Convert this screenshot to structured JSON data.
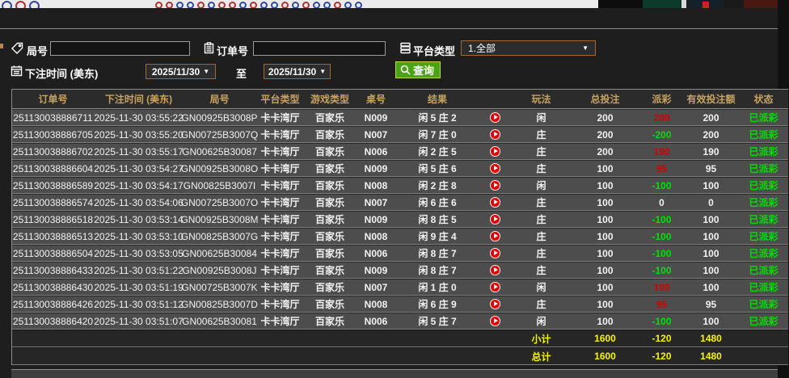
{
  "filters": {
    "round_label": "局号",
    "round_value": "",
    "order_label": "订单号",
    "order_value": "",
    "platform_label": "平台类型",
    "platform_selected": "1.全部",
    "bettime_label": "下注时间 (美东)",
    "date_from": "2025/11/30",
    "to_label": "至",
    "date_to": "2025/11/30",
    "query_label": "查询",
    "dropdown_arrow": "▼"
  },
  "table": {
    "headers": [
      "订单号",
      "下注时间 (美东)",
      "局号",
      "平台类型",
      "游戏类型",
      "桌号",
      "结果",
      "",
      "玩法",
      "总投注",
      "派彩",
      "有效投注额",
      "状态"
    ],
    "rows": [
      {
        "order": "251130038886711",
        "time": "2025-11-30 03:55:22",
        "round": "GN00925B3008P",
        "platform": "卡卡湾厅",
        "game": "百家乐",
        "table_no": "N009",
        "result": "闲 5 庄 2",
        "play": "闲",
        "total": "200",
        "payout": "200",
        "payout_cls": "win",
        "valid": "200",
        "status": "已派彩"
      },
      {
        "order": "251130038886705",
        "time": "2025-11-30 03:55:20",
        "round": "GN00725B3007Q",
        "platform": "卡卡湾厅",
        "game": "百家乐",
        "table_no": "N007",
        "result": "闲 7 庄 0",
        "play": "庄",
        "total": "200",
        "payout": "-200",
        "payout_cls": "loss",
        "valid": "200",
        "status": "已派彩"
      },
      {
        "order": "251130038886702",
        "time": "2025-11-30 03:55:17",
        "round": "GN00625B30087",
        "platform": "卡卡湾厅",
        "game": "百家乐",
        "table_no": "N006",
        "result": "闲 2 庄 5",
        "play": "庄",
        "total": "200",
        "payout": "190",
        "payout_cls": "win",
        "valid": "190",
        "status": "已派彩"
      },
      {
        "order": "251130038886604",
        "time": "2025-11-30 03:54:27",
        "round": "GN00925B3008O",
        "platform": "卡卡湾厅",
        "game": "百家乐",
        "table_no": "N009",
        "result": "闲 5 庄 6",
        "play": "庄",
        "total": "100",
        "payout": "95",
        "payout_cls": "win",
        "valid": "95",
        "status": "已派彩"
      },
      {
        "order": "251130038886589",
        "time": "2025-11-30 03:54:17",
        "round": "GN00825B3007I",
        "platform": "卡卡湾厅",
        "game": "百家乐",
        "table_no": "N008",
        "result": "闲 2 庄 8",
        "play": "闲",
        "total": "100",
        "payout": "-100",
        "payout_cls": "loss",
        "valid": "100",
        "status": "已派彩"
      },
      {
        "order": "251130038886574",
        "time": "2025-11-30 03:54:06",
        "round": "GN00725B3007O",
        "platform": "卡卡湾厅",
        "game": "百家乐",
        "table_no": "N007",
        "result": "闲 6 庄 6",
        "play": "庄",
        "total": "100",
        "payout": "0",
        "payout_cls": "zero",
        "valid": "0",
        "status": "已派彩"
      },
      {
        "order": "251130038886518",
        "time": "2025-11-30 03:53:14",
        "round": "GN00925B3008M",
        "platform": "卡卡湾厅",
        "game": "百家乐",
        "table_no": "N009",
        "result": "闲 8 庄 5",
        "play": "庄",
        "total": "100",
        "payout": "-100",
        "payout_cls": "loss",
        "valid": "100",
        "status": "已派彩"
      },
      {
        "order": "251130038886513",
        "time": "2025-11-30 03:53:10",
        "round": "GN00825B3007G",
        "platform": "卡卡湾厅",
        "game": "百家乐",
        "table_no": "N008",
        "result": "闲 9 庄 4",
        "play": "庄",
        "total": "100",
        "payout": "-100",
        "payout_cls": "loss",
        "valid": "100",
        "status": "已派彩"
      },
      {
        "order": "251130038886504",
        "time": "2025-11-30 03:53:05",
        "round": "GN00625B30084",
        "platform": "卡卡湾厅",
        "game": "百家乐",
        "table_no": "N006",
        "result": "闲 8 庄 7",
        "play": "庄",
        "total": "100",
        "payout": "-100",
        "payout_cls": "loss",
        "valid": "100",
        "status": "已派彩"
      },
      {
        "order": "251130038886433",
        "time": "2025-11-30 03:51:22",
        "round": "GN00925B3008J",
        "platform": "卡卡湾厅",
        "game": "百家乐",
        "table_no": "N009",
        "result": "闲 8 庄 7",
        "play": "庄",
        "total": "100",
        "payout": "-100",
        "payout_cls": "loss",
        "valid": "100",
        "status": "已派彩"
      },
      {
        "order": "251130038886430",
        "time": "2025-11-30 03:51:19",
        "round": "GN00725B3007K",
        "platform": "卡卡湾厅",
        "game": "百家乐",
        "table_no": "N007",
        "result": "闲 1 庄 0",
        "play": "闲",
        "total": "100",
        "payout": "100",
        "payout_cls": "win",
        "valid": "100",
        "status": "已派彩"
      },
      {
        "order": "251130038886426",
        "time": "2025-11-30 03:51:12",
        "round": "GN00825B3007D",
        "platform": "卡卡湾厅",
        "game": "百家乐",
        "table_no": "N008",
        "result": "闲 6 庄 9",
        "play": "庄",
        "total": "100",
        "payout": "95",
        "payout_cls": "win",
        "valid": "95",
        "status": "已派彩"
      },
      {
        "order": "251130038886420",
        "time": "2025-11-30 03:51:07",
        "round": "GN00625B30081",
        "platform": "卡卡湾厅",
        "game": "百家乐",
        "table_no": "N006",
        "result": "闲 5 庄 7",
        "play": "闲",
        "total": "100",
        "payout": "-100",
        "payout_cls": "loss",
        "valid": "100",
        "status": "已派彩"
      }
    ],
    "subtotal": {
      "label": "小计",
      "total": "1600",
      "payout": "-120",
      "valid": "1480"
    },
    "grandtotal": {
      "label": "总计",
      "total": "1600",
      "payout": "-120",
      "valid": "1480"
    }
  },
  "colors": {
    "accent_gold_header": "#c8a25f",
    "footer_yellow": "#f5f500",
    "payout_win_red": "#d40000",
    "payout_loss_green": "#00e000",
    "status_green": "#00e000",
    "query_green": "#4aa315",
    "date_border_orange": "#a5682a"
  },
  "background": {
    "roadmap_dots": [
      "#b03030",
      "#b03030",
      "#3048a0",
      "#3048a0",
      "#b03030",
      "#3048a0",
      "#b03030",
      "#b03030",
      "#3048a0",
      "#b03030",
      "#3048a0",
      "#3048a0",
      "#b03030",
      "#3048a0",
      "#b03030",
      "#3048a0",
      "#3048a0",
      "#b03030",
      "#3048a0",
      "#3048a0"
    ]
  }
}
